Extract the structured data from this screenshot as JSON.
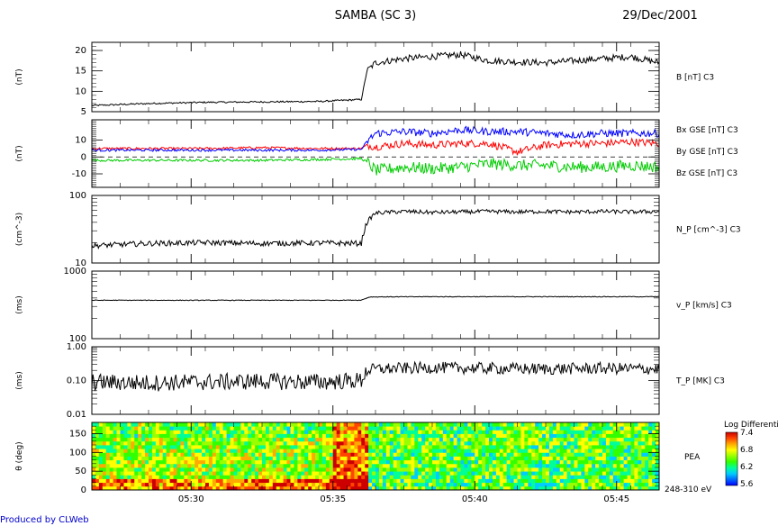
{
  "title": "SAMBA (SC 3)",
  "date": "29/Dec/2001",
  "credit": "Produced by CLWeb",
  "time_ticks": [
    "05:30",
    "05:35",
    "05:40",
    "05:45"
  ],
  "colors": {
    "black": "#000000",
    "red": "#ff0000",
    "green": "#00cc00",
    "blue": "#0000ff"
  },
  "colorbar": {
    "title": "Log Differential",
    "labels": [
      "7.4",
      "6.8",
      "6.2",
      "5.6"
    ]
  },
  "chart_data": [
    {
      "type": "line",
      "ylabel": "(nT)",
      "ylim": [
        5,
        22
      ],
      "yticks": [
        "5",
        "10",
        "15",
        "20"
      ],
      "series": [
        {
          "name": "B [nT] C3",
          "color": "#000000",
          "x": [
            0,
            2,
            4,
            6,
            8,
            9.5,
            9.7,
            10,
            11,
            12,
            13,
            14,
            15,
            16,
            17,
            18,
            19,
            20
          ],
          "y": [
            6.5,
            7,
            7.3,
            7.4,
            7.5,
            8,
            15,
            17,
            18,
            18.5,
            19,
            17.5,
            17.2,
            17,
            17.5,
            18,
            18.5,
            17
          ]
        }
      ]
    },
    {
      "type": "line",
      "ylabel": "(nT)",
      "ylim": [
        -18,
        22
      ],
      "yticks": [
        "-10",
        "0",
        "10"
      ],
      "series": [
        {
          "name": "Bx GSE [nT] C3",
          "color": "#ff0000",
          "x": [
            0,
            2,
            4,
            6,
            8,
            9.5,
            9.7,
            10,
            11,
            12,
            13,
            14,
            15,
            16,
            17,
            18,
            19,
            20
          ],
          "y": [
            5,
            5,
            5,
            5.5,
            5,
            5,
            7,
            6,
            8,
            7,
            8,
            8,
            3,
            7,
            8,
            8,
            9,
            8
          ]
        },
        {
          "name": "By GSE [nT] C3",
          "color": "#00cc00",
          "x": [
            0,
            2,
            4,
            6,
            8,
            9.5,
            9.7,
            10,
            11,
            12,
            13,
            14,
            15,
            16,
            17,
            18,
            19,
            20
          ],
          "y": [
            -2,
            -2,
            -2,
            -2,
            -1.5,
            -1,
            -3,
            -8,
            -6,
            -7,
            -6,
            -4,
            -5,
            -5,
            -6,
            -6,
            -5,
            -6
          ]
        },
        {
          "name": "Bz GSE [nT] C3",
          "color": "#0000ff",
          "x": [
            0,
            2,
            4,
            6,
            8,
            9.5,
            9.7,
            10,
            11,
            12,
            13,
            14,
            15,
            16,
            17,
            18,
            19,
            20
          ],
          "y": [
            4,
            4,
            4,
            4,
            4,
            4.5,
            9,
            14,
            15,
            14,
            16,
            15,
            15,
            14,
            13,
            14,
            14,
            14
          ]
        }
      ]
    },
    {
      "type": "line",
      "ylabel": "(cm^-3)",
      "ylim": [
        10,
        100
      ],
      "yticks": [
        "10",
        "100"
      ],
      "yscale": "log",
      "series": [
        {
          "name": "N_P [cm^-3] C3",
          "color": "#000000",
          "x": [
            0,
            2,
            4,
            6,
            8,
            9.5,
            9.7,
            10,
            11,
            12,
            13,
            14,
            15,
            16,
            17,
            18,
            19,
            20
          ],
          "y": [
            18,
            19.5,
            20,
            19.5,
            19.8,
            19.5,
            40,
            55,
            58,
            56,
            57,
            58,
            57,
            58,
            57,
            58,
            57,
            58
          ]
        }
      ]
    },
    {
      "type": "line",
      "ylabel": "(ms)",
      "ylim": [
        100,
        1000
      ],
      "yticks": [
        "100",
        "1000"
      ],
      "yscale": "log",
      "series": [
        {
          "name": "v_P [km/s] C3",
          "color": "#000000",
          "x": [
            0,
            4,
            8,
            9.5,
            9.8,
            12,
            16,
            20
          ],
          "y": [
            370,
            370,
            370,
            372,
            415,
            418,
            418,
            418
          ]
        }
      ]
    },
    {
      "type": "line",
      "ylabel": "(ms)",
      "ylim": [
        0.01,
        1.0
      ],
      "yticks": [
        "0.01",
        "0.10",
        "1.00"
      ],
      "yscale": "log",
      "series": [
        {
          "name": "T_P [MK] C3",
          "color": "#000000",
          "x": [
            0,
            2,
            4,
            6,
            8,
            9.5,
            9.7,
            10,
            12,
            14,
            16,
            18,
            20
          ],
          "y": [
            0.09,
            0.085,
            0.09,
            0.095,
            0.09,
            0.1,
            0.2,
            0.22,
            0.24,
            0.23,
            0.22,
            0.23,
            0.22
          ]
        }
      ]
    },
    {
      "type": "heatmap",
      "ylabel": "θ (deg)",
      "ylim": [
        0,
        180
      ],
      "yticks": [
        "0",
        "50",
        "100",
        "150"
      ],
      "name": "PEA",
      "energy_label": "248-310 eV",
      "zlim": [
        5.6,
        7.4
      ]
    }
  ]
}
